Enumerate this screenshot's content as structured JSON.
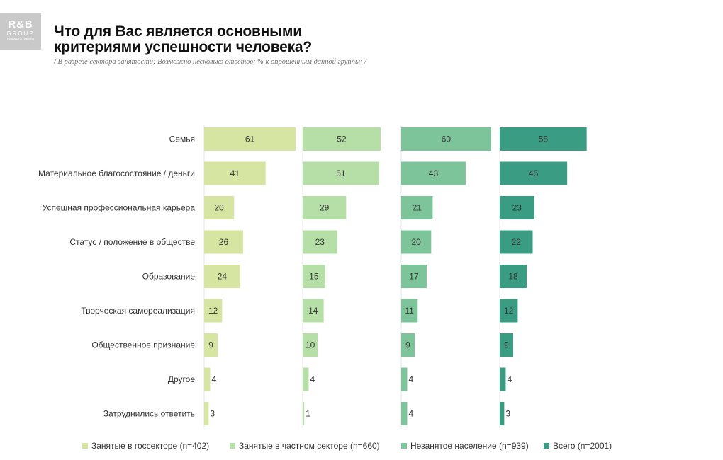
{
  "logo": {
    "mark": "R&B",
    "group": "GROUP",
    "tagline": "Research & Branding"
  },
  "title": "Что для Вас является основными\nкритериями успешности человека?",
  "subtitle": "/ В разрезе сектора занятости; Возможно несколько ответов; % к опрошенным данной группы; /",
  "chart_data": {
    "type": "bar",
    "orientation": "horizontal",
    "layout": "small-multiples",
    "categories": [
      "Семья",
      "Материальное благосостояние / деньги",
      "Успешная профессиональная карьера",
      "Статус / положение в обществе",
      "Образование",
      "Творческая самореализация",
      "Общественное признание",
      "Другое",
      "Затруднились ответить"
    ],
    "series": [
      {
        "name": "Занятые в госсекторе (n=402)",
        "color": "#d6e6a2",
        "values": [
          61,
          41,
          20,
          26,
          24,
          12,
          9,
          4,
          3
        ]
      },
      {
        "name": "Занятые в частном секторе (n=660)",
        "color": "#b6dfa8",
        "values": [
          52,
          51,
          29,
          23,
          15,
          14,
          10,
          4,
          1
        ]
      },
      {
        "name": "Незанятое население (n=939)",
        "color": "#7dc49b",
        "values": [
          60,
          43,
          21,
          20,
          17,
          11,
          9,
          4,
          4
        ]
      },
      {
        "name": "Всего (n=2001)",
        "color": "#3a9c82",
        "values": [
          58,
          45,
          23,
          22,
          18,
          12,
          9,
          4,
          3
        ]
      }
    ],
    "xlim": [
      0,
      61
    ],
    "unit": "%",
    "legend_position": "bottom"
  }
}
